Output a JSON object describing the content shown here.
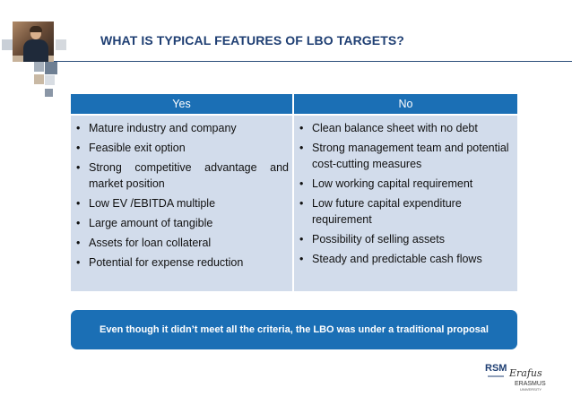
{
  "header": {
    "title": "WHAT IS TYPICAL FEATURES OF LBO TARGETS?"
  },
  "table": {
    "yes_header": "Yes",
    "no_header": "No",
    "yes_items": [
      "Mature industry and company",
      "Feasible exit option",
      "Strong competitive advantage and market position",
      "Low EV /EBITDA multiple",
      "Large amount of tangible",
      "Assets for loan collateral",
      "Potential for expense reduction"
    ],
    "no_items": [
      "Clean balance sheet with no debt",
      "Strong management team and potential cost-cutting measures",
      "Low working capital requirement",
      "Low future capital expenditure requirement",
      "Possibility of selling assets",
      "Steady and predictable cash flows"
    ],
    "bullet": "•"
  },
  "callout": {
    "text": "Even though it didn’t meet all the criteria, the LBO was under a traditional proposal"
  },
  "logo": {
    "abbr": "RSM",
    "script": "Erafus",
    "name": "ERASMUS",
    "sub": "UNIVERSITY"
  },
  "colors": {
    "accent": "#1b6fb5",
    "title": "#1f3f73",
    "cell": "#d2dceb"
  }
}
